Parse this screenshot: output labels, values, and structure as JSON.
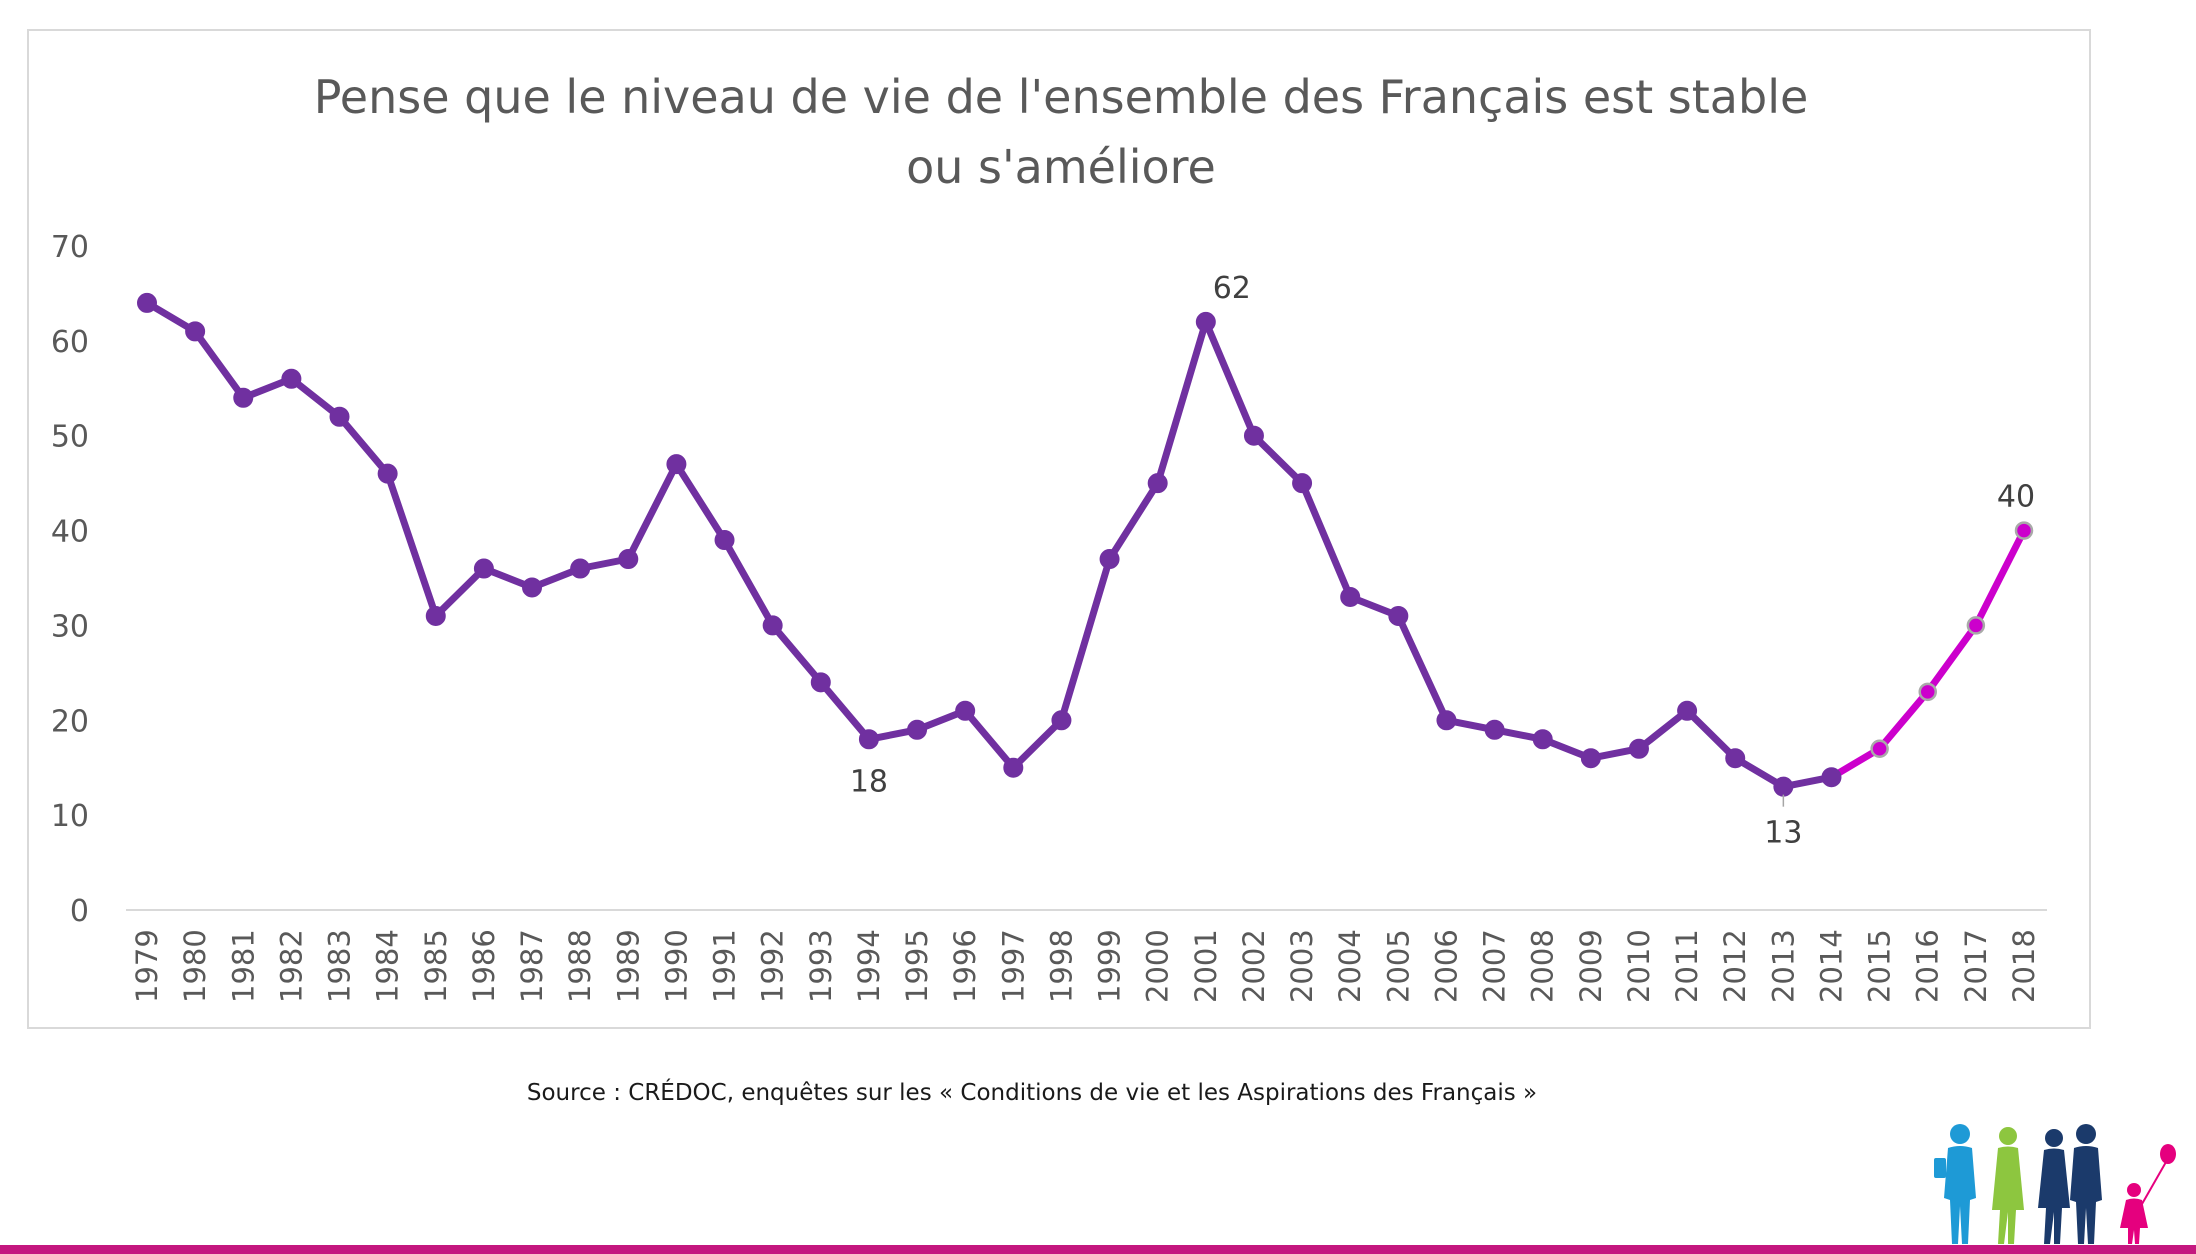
{
  "chart_data": {
    "type": "line",
    "title": [
      "Pense que le niveau de vie de l'ensemble des Français est stable",
      "ou s'améliore"
    ],
    "xlabel": "",
    "ylabel": "",
    "ylim": [
      0,
      70
    ],
    "yticks": [
      0,
      10,
      20,
      30,
      40,
      50,
      60,
      70
    ],
    "grid": false,
    "legend": "none",
    "x": [
      "1979",
      "1980",
      "1981",
      "1982",
      "1983",
      "1984",
      "1985",
      "1986",
      "1987",
      "1988",
      "1989",
      "1990",
      "1991",
      "1992",
      "1993",
      "1994",
      "1995",
      "1996",
      "1997",
      "1998",
      "1999",
      "2000",
      "2001",
      "2002",
      "2003",
      "2004",
      "2005",
      "2006",
      "2007",
      "2008",
      "2009",
      "2010",
      "2011",
      "2012",
      "2013",
      "2014",
      "2015",
      "2016",
      "2017",
      "2018"
    ],
    "series": [
      {
        "color": "#7030a0",
        "highlight_color": "#cc00cc",
        "highlight_from": "2014",
        "values": [
          64,
          61,
          54,
          56,
          52,
          46,
          31,
          36,
          34,
          36,
          37,
          47,
          39,
          30,
          24,
          18,
          19,
          21,
          15,
          20,
          37,
          45,
          62,
          50,
          45,
          33,
          31,
          20,
          19,
          18,
          16,
          17,
          21,
          16,
          13,
          14,
          17,
          23,
          30,
          40
        ]
      }
    ],
    "data_labels": [
      {
        "x": "1994",
        "label": "18",
        "position": "below"
      },
      {
        "x": "2001",
        "label": "62",
        "position": "above"
      },
      {
        "x": "2013",
        "label": "13",
        "position": "below"
      },
      {
        "x": "2018",
        "label": "40",
        "position": "above"
      }
    ]
  },
  "source": "Source : CRÉDOC, enquêtes sur les « Conditions de vie et les Aspirations des Français »",
  "logo": {
    "icon": "family-silhouette-logo",
    "colors": [
      "#1e9ad6",
      "#8dc63f",
      "#1b3a6b",
      "#e5007e"
    ]
  }
}
